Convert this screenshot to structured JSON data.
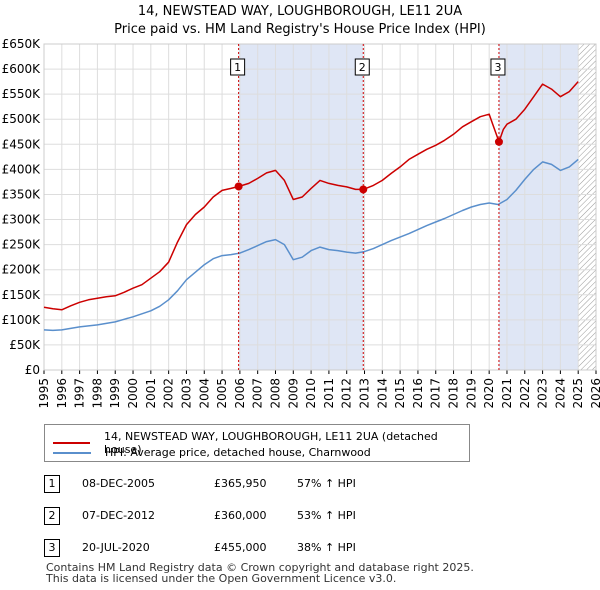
{
  "header": {
    "title_line1": "14, NEWSTEAD WAY, LOUGHBOROUGH, LE11 2UA",
    "title_line2": "Price paid vs. HM Land Registry's House Price Index (HPI)"
  },
  "colors": {
    "property": "#cc0000",
    "hpi": "#5a8fcc",
    "shade": "#dfe6f5",
    "grid": "#dddddd",
    "hatch": "#999999"
  },
  "chart_data": {
    "type": "line",
    "x_range": [
      1995,
      2026
    ],
    "ylim": [
      0,
      650000
    ],
    "y_ticks": [
      0,
      50000,
      100000,
      150000,
      200000,
      250000,
      300000,
      350000,
      400000,
      450000,
      500000,
      550000,
      600000,
      650000
    ],
    "y_tick_labels": [
      "£0",
      "£50K",
      "£100K",
      "£150K",
      "£200K",
      "£250K",
      "£300K",
      "£350K",
      "£400K",
      "£450K",
      "£500K",
      "£550K",
      "£600K",
      "£650K"
    ],
    "x_ticks": [
      "1995",
      "1996",
      "1997",
      "1998",
      "1999",
      "2000",
      "2001",
      "2002",
      "2003",
      "2004",
      "2005",
      "2006",
      "2007",
      "2008",
      "2009",
      "2010",
      "2011",
      "2012",
      "2013",
      "2014",
      "2015",
      "2016",
      "2017",
      "2018",
      "2019",
      "2020",
      "2021",
      "2022",
      "2023",
      "2024",
      "2025",
      "2026"
    ],
    "shaded_ranges": [
      [
        2005.93,
        2012.93
      ],
      [
        2020.55,
        2025.0
      ]
    ],
    "hatched_from": 2025.0,
    "series": [
      {
        "name": "14, NEWSTEAD WAY, LOUGHBOROUGH, LE11 2UA (detached house)",
        "color": "#cc0000",
        "points": [
          [
            1995.0,
            125000
          ],
          [
            1995.5,
            122000
          ],
          [
            1996.0,
            120000
          ],
          [
            1996.5,
            128000
          ],
          [
            1997.0,
            135000
          ],
          [
            1997.5,
            140000
          ],
          [
            1998.0,
            143000
          ],
          [
            1998.5,
            146000
          ],
          [
            1999.0,
            148000
          ],
          [
            1999.5,
            155000
          ],
          [
            2000.0,
            163000
          ],
          [
            2000.5,
            170000
          ],
          [
            2001.0,
            183000
          ],
          [
            2001.5,
            196000
          ],
          [
            2002.0,
            215000
          ],
          [
            2002.5,
            255000
          ],
          [
            2003.0,
            290000
          ],
          [
            2003.5,
            310000
          ],
          [
            2004.0,
            325000
          ],
          [
            2004.5,
            345000
          ],
          [
            2005.0,
            358000
          ],
          [
            2005.5,
            362000
          ],
          [
            2005.93,
            365950
          ],
          [
            2006.5,
            372000
          ],
          [
            2007.0,
            382000
          ],
          [
            2007.5,
            393000
          ],
          [
            2008.0,
            398000
          ],
          [
            2008.5,
            378000
          ],
          [
            2009.0,
            340000
          ],
          [
            2009.5,
            345000
          ],
          [
            2010.0,
            362000
          ],
          [
            2010.5,
            378000
          ],
          [
            2011.0,
            372000
          ],
          [
            2011.5,
            368000
          ],
          [
            2012.0,
            365000
          ],
          [
            2012.5,
            360000
          ],
          [
            2012.93,
            360000
          ],
          [
            2013.5,
            368000
          ],
          [
            2014.0,
            378000
          ],
          [
            2014.5,
            392000
          ],
          [
            2015.0,
            405000
          ],
          [
            2015.5,
            420000
          ],
          [
            2016.0,
            430000
          ],
          [
            2016.5,
            440000
          ],
          [
            2017.0,
            448000
          ],
          [
            2017.5,
            458000
          ],
          [
            2018.0,
            470000
          ],
          [
            2018.5,
            485000
          ],
          [
            2019.0,
            495000
          ],
          [
            2019.5,
            505000
          ],
          [
            2020.0,
            510000
          ],
          [
            2020.2,
            490000
          ],
          [
            2020.55,
            455000
          ],
          [
            2020.8,
            480000
          ],
          [
            2021.0,
            490000
          ],
          [
            2021.5,
            500000
          ],
          [
            2022.0,
            520000
          ],
          [
            2022.5,
            545000
          ],
          [
            2023.0,
            570000
          ],
          [
            2023.5,
            560000
          ],
          [
            2024.0,
            545000
          ],
          [
            2024.5,
            555000
          ],
          [
            2025.0,
            575000
          ]
        ]
      },
      {
        "name": "HPI: Average price, detached house, Charnwood",
        "color": "#5a8fcc",
        "points": [
          [
            1995.0,
            80000
          ],
          [
            1995.5,
            79000
          ],
          [
            1996.0,
            80000
          ],
          [
            1996.5,
            83000
          ],
          [
            1997.0,
            86000
          ],
          [
            1997.5,
            88000
          ],
          [
            1998.0,
            90000
          ],
          [
            1998.5,
            93000
          ],
          [
            1999.0,
            96000
          ],
          [
            1999.5,
            101000
          ],
          [
            2000.0,
            106000
          ],
          [
            2000.5,
            112000
          ],
          [
            2001.0,
            118000
          ],
          [
            2001.5,
            127000
          ],
          [
            2002.0,
            140000
          ],
          [
            2002.5,
            158000
          ],
          [
            2003.0,
            180000
          ],
          [
            2003.5,
            195000
          ],
          [
            2004.0,
            210000
          ],
          [
            2004.5,
            222000
          ],
          [
            2005.0,
            228000
          ],
          [
            2005.5,
            230000
          ],
          [
            2006.0,
            233000
          ],
          [
            2006.5,
            240000
          ],
          [
            2007.0,
            248000
          ],
          [
            2007.5,
            256000
          ],
          [
            2008.0,
            260000
          ],
          [
            2008.5,
            250000
          ],
          [
            2009.0,
            220000
          ],
          [
            2009.5,
            225000
          ],
          [
            2010.0,
            238000
          ],
          [
            2010.5,
            245000
          ],
          [
            2011.0,
            240000
          ],
          [
            2011.5,
            238000
          ],
          [
            2012.0,
            235000
          ],
          [
            2012.5,
            233000
          ],
          [
            2013.0,
            236000
          ],
          [
            2013.5,
            242000
          ],
          [
            2014.0,
            250000
          ],
          [
            2014.5,
            258000
          ],
          [
            2015.0,
            265000
          ],
          [
            2015.5,
            272000
          ],
          [
            2016.0,
            280000
          ],
          [
            2016.5,
            288000
          ],
          [
            2017.0,
            295000
          ],
          [
            2017.5,
            302000
          ],
          [
            2018.0,
            310000
          ],
          [
            2018.5,
            318000
          ],
          [
            2019.0,
            325000
          ],
          [
            2019.5,
            330000
          ],
          [
            2020.0,
            333000
          ],
          [
            2020.5,
            330000
          ],
          [
            2021.0,
            340000
          ],
          [
            2021.5,
            358000
          ],
          [
            2022.0,
            380000
          ],
          [
            2022.5,
            400000
          ],
          [
            2023.0,
            415000
          ],
          [
            2023.5,
            410000
          ],
          [
            2024.0,
            398000
          ],
          [
            2024.5,
            405000
          ],
          [
            2025.0,
            420000
          ]
        ]
      }
    ],
    "sale_markers": [
      {
        "label": "1",
        "x": 2005.93,
        "value": 365950
      },
      {
        "label": "2",
        "x": 2012.93,
        "value": 360000
      },
      {
        "label": "3",
        "x": 2020.55,
        "value": 455000
      }
    ]
  },
  "legend": {
    "property_label": "14, NEWSTEAD WAY, LOUGHBOROUGH, LE11 2UA (detached house)",
    "hpi_label": "HPI: Average price, detached house, Charnwood"
  },
  "sales": [
    {
      "num": "1",
      "date": "08-DEC-2005",
      "price": "£365,950",
      "hpi": "57% ↑ HPI"
    },
    {
      "num": "2",
      "date": "07-DEC-2012",
      "price": "£360,000",
      "hpi": "53% ↑ HPI"
    },
    {
      "num": "3",
      "date": "20-JUL-2020",
      "price": "£455,000",
      "hpi": "38% ↑ HPI"
    }
  ],
  "footer": {
    "line1": "Contains HM Land Registry data © Crown copyright and database right 2025.",
    "line2": "This data is licensed under the Open Government Licence v3.0."
  }
}
